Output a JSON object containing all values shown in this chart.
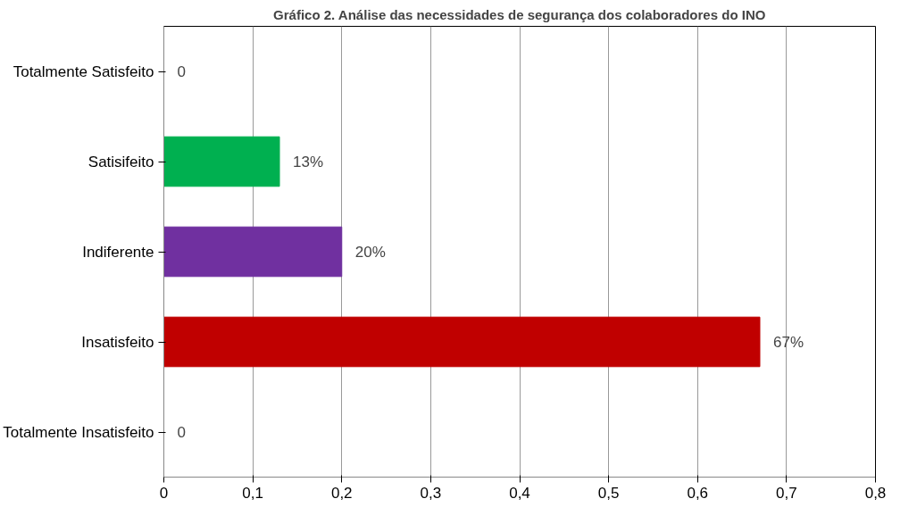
{
  "chart_data": {
    "type": "bar",
    "orientation": "horizontal",
    "title": "Gráfico 2. Análise das necessidades de segurança dos colaboradores do INO",
    "categories": [
      "Totalmente Satisfeito",
      "Satisifeito",
      "Indiferente",
      "Insatisfeito",
      "Totalmente Insatisfeito"
    ],
    "values": [
      0,
      0.13,
      0.2,
      0.67,
      0
    ],
    "colors": [
      "#00b050",
      "#00b050",
      "#7030a0",
      "#c00000",
      "#c00000"
    ],
    "value_labels": [
      "0",
      "13%",
      "20%",
      "67%",
      "0"
    ],
    "xlim": [
      0,
      0.8
    ],
    "xticks": [
      {
        "value": 0,
        "label": "0"
      },
      {
        "value": 0.1,
        "label": "0,1"
      },
      {
        "value": 0.2,
        "label": "0,2"
      },
      {
        "value": 0.3,
        "label": "0,3"
      },
      {
        "value": 0.4,
        "label": "0,4"
      },
      {
        "value": 0.5,
        "label": "0,5"
      },
      {
        "value": 0.6,
        "label": "0,6"
      },
      {
        "value": 0.7,
        "label": "0,7"
      },
      {
        "value": 0.8,
        "label": "0,8"
      }
    ],
    "grid": "x"
  }
}
